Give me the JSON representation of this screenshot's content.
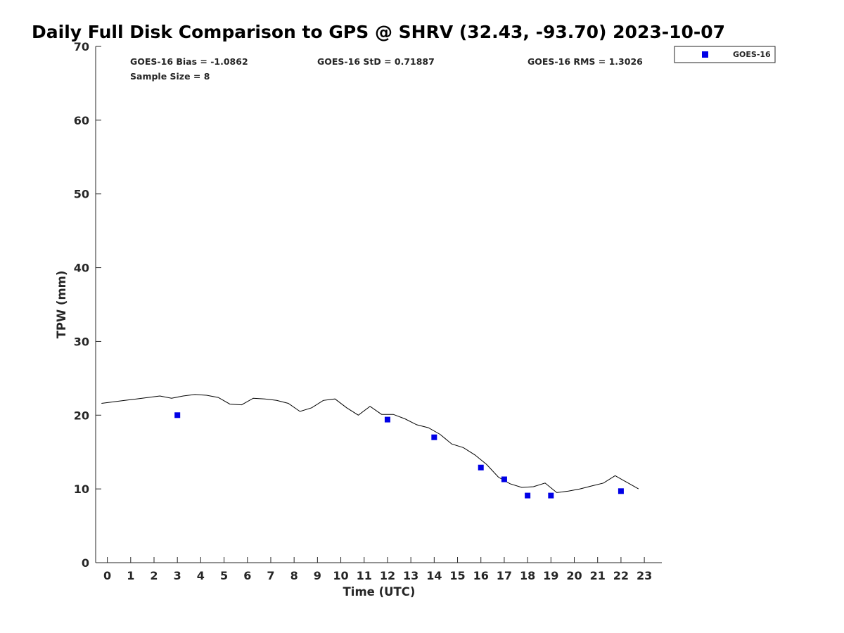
{
  "chart_data": {
    "type": "scatter",
    "title": "Daily Full Disk Comparison to GPS @ SHRV (32.43, -93.70) 2023-10-07",
    "xlabel": "Time (UTC)",
    "ylabel": "TPW (mm)",
    "xlim": [
      -0.5,
      23.75
    ],
    "ylim": [
      0,
      70
    ],
    "x_ticks": [
      0,
      1,
      2,
      3,
      4,
      5,
      6,
      7,
      8,
      9,
      10,
      11,
      12,
      13,
      14,
      15,
      16,
      17,
      18,
      19,
      20,
      21,
      22,
      23
    ],
    "y_ticks": [
      0,
      10,
      20,
      30,
      40,
      50,
      60,
      70
    ],
    "grid": false,
    "legend_position": "top-right",
    "stats": {
      "bias": "GOES-16 Bias = -1.0862",
      "std": "GOES-16 StD = 0.71887",
      "rms": "GOES-16 RMS = 1.3026",
      "sample": "Sample Size = 8"
    },
    "series": [
      {
        "name": "GOES-16",
        "kind": "scatter",
        "marker": "square",
        "color": "#0000e6",
        "x": [
          3,
          12,
          14,
          16,
          17,
          18,
          19,
          22
        ],
        "y": [
          20.0,
          19.4,
          17.0,
          12.9,
          11.3,
          9.1,
          9.1,
          9.7
        ]
      },
      {
        "kind": "line",
        "color": "#000000",
        "x": [
          -0.25,
          0.25,
          0.75,
          1.25,
          1.75,
          2.25,
          2.75,
          3.25,
          3.75,
          4.25,
          4.75,
          5.25,
          5.75,
          6.25,
          6.75,
          7.25,
          7.75,
          8.25,
          8.75,
          9.25,
          9.75,
          10.25,
          10.75,
          11.25,
          11.75,
          12.25,
          12.75,
          13.25,
          13.75,
          14.25,
          14.75,
          15.25,
          15.75,
          16.25,
          16.75,
          17.25,
          17.75,
          18.25,
          18.75,
          19.25,
          19.75,
          20.25,
          20.75,
          21.25,
          21.75,
          22.25,
          22.75
        ],
        "y": [
          21.6,
          21.8,
          22.0,
          22.2,
          22.4,
          22.6,
          22.3,
          22.6,
          22.8,
          22.7,
          22.4,
          21.5,
          21.4,
          22.3,
          22.2,
          22.0,
          21.6,
          20.5,
          21.0,
          22.0,
          22.2,
          21.0,
          20.0,
          21.2,
          20.1,
          20.1,
          19.5,
          18.7,
          18.3,
          17.4,
          16.1,
          15.6,
          14.6,
          13.3,
          11.6,
          10.7,
          10.2,
          10.3,
          10.8,
          9.5,
          9.7,
          10.0,
          10.4,
          10.8,
          11.8,
          10.9,
          10.0
        ]
      }
    ]
  }
}
